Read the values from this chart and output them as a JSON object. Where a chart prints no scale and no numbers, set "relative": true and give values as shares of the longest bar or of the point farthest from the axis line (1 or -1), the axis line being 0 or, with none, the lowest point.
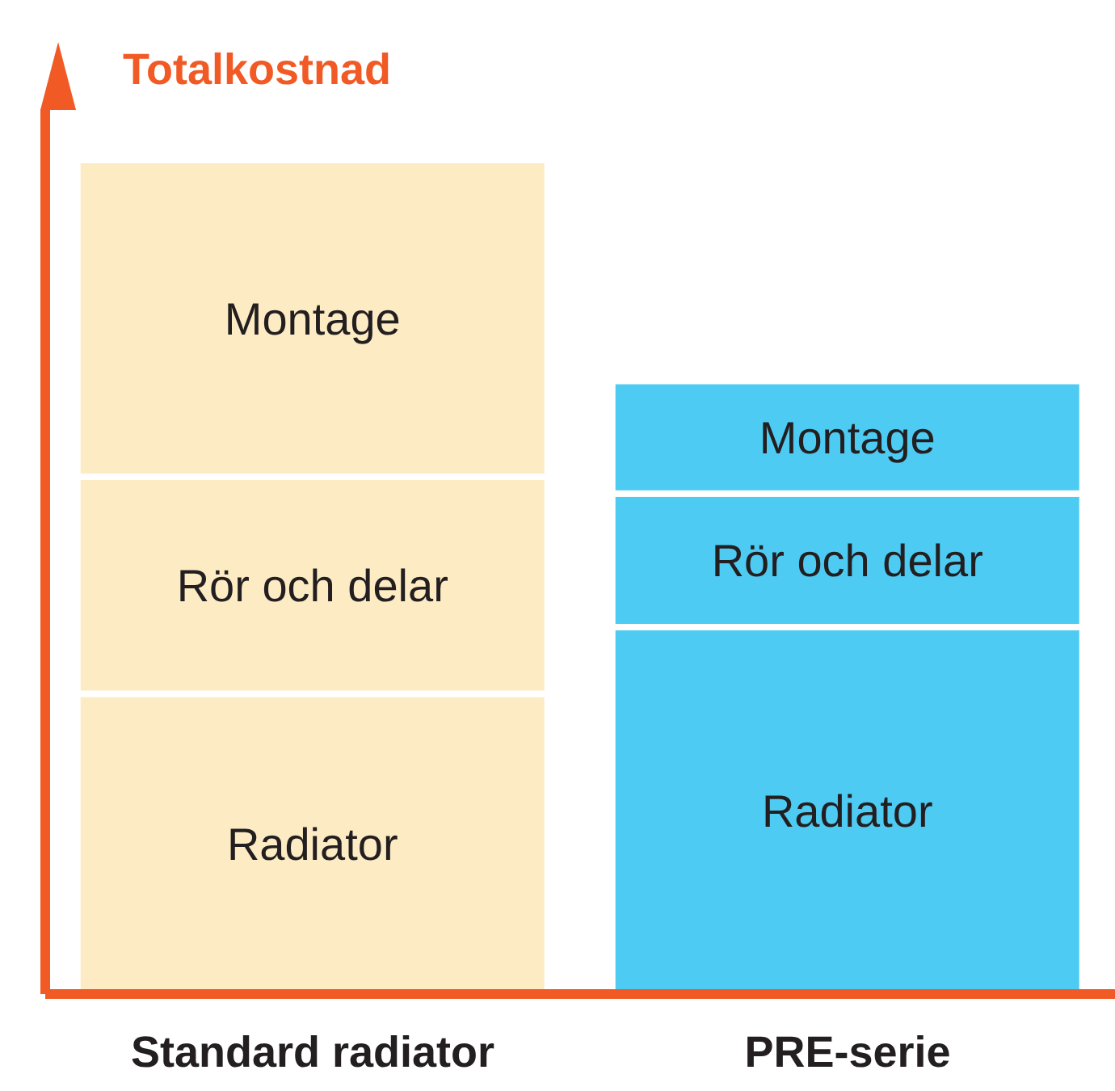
{
  "chart_data": {
    "type": "bar",
    "ylabel": "Totalkostnad",
    "categories": [
      "Standard radiator",
      "PRE-serie"
    ],
    "stacked": true,
    "relative": true,
    "legend": false,
    "grid": false,
    "series": [
      {
        "name": "Radiator",
        "colors": [
          "#fdebc4",
          "#4ecbf3"
        ],
        "values": [
          0.36,
          0.44
        ]
      },
      {
        "name": "Rör och delar",
        "colors": [
          "#fdebc4",
          "#4ecbf3"
        ],
        "values": [
          0.26,
          0.16
        ]
      },
      {
        "name": "Montage",
        "colors": [
          "#fdebc4",
          "#4ecbf3"
        ],
        "values": [
          0.38,
          0.135
        ]
      }
    ]
  }
}
